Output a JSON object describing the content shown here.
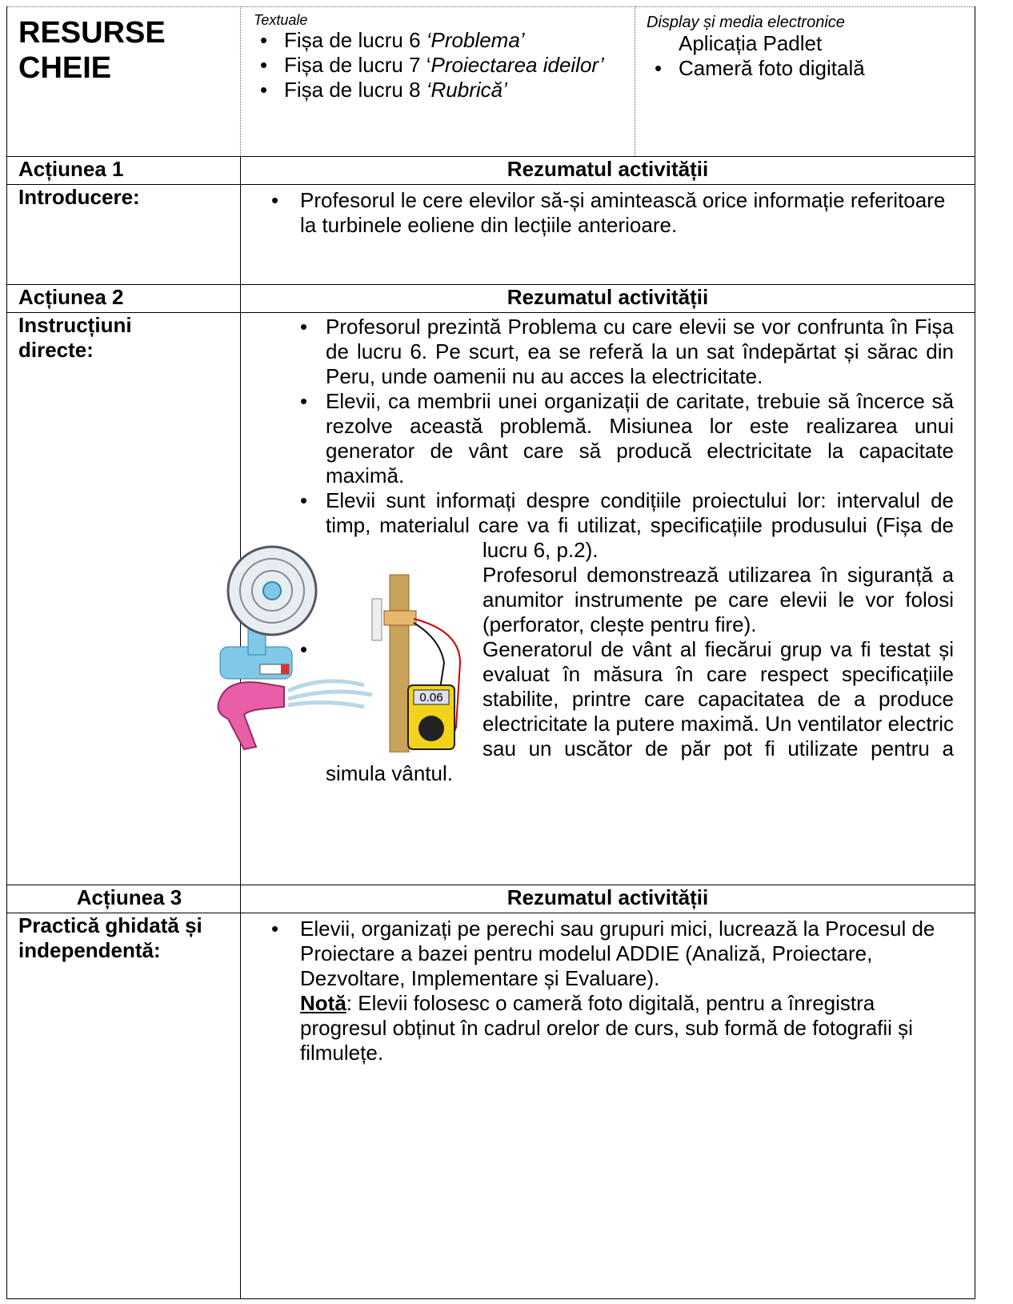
{
  "resources": {
    "title": "RESURSE CHEIE",
    "textual": {
      "heading": "Textuale",
      "items": [
        [
          {
            "plain": "Fișa de lucru  6 "
          },
          {
            "italic": "‘Problema’"
          }
        ],
        [
          {
            "plain": "Fișa de lucru 7 ‘"
          },
          {
            "italic": "Proiectarea ideilor’"
          }
        ],
        [
          {
            "plain": "Fișa de lucru 8 "
          },
          {
            "italic": "‘Rubrică’"
          }
        ]
      ]
    },
    "display": {
      "heading": "Display și media electronice",
      "lead": "Aplicația Padlet",
      "items": [
        "Cameră foto digitală"
      ]
    }
  },
  "sections": [
    {
      "action": "Acțiunea 1",
      "heading": "Rezumatul activității",
      "label": "Introducere:",
      "bullets": [
        "Profesorul le cere elevilor să-și amintească orice informație referitoare la turbinele eoliene din  lecțiile anterioare."
      ]
    },
    {
      "action": "Acțiunea 2",
      "heading": "Rezumatul activității",
      "label": "Instrucțiuni directe:",
      "bullets": [
        "Profesorul prezintă Problema cu care elevii se vor confrunta în Fișa de lucru 6.  Pe scurt, ea se referă la un sat îndepărtat și sărac din Peru, unde oamenii nu au acces la electricitate.",
        "Elevii, ca membrii unei organizații de caritate, trebuie să încerce să rezolve această problemă.  Misiunea lor este realizarea unui generator de vânt care să producă electricitate la capacitate maximă.",
        "Elevii sunt informați despre condițiile proiectului lor: intervalul de timp, materialul care va fi utilizat, specificațiile produsului (Fișa de lucru 6, p.2).",
        "Profesorul demonstrează utilizarea în siguranță a anumitor instrumente pe care elevii le vor folosi (perforator, clește pentru fire).",
        "Generatorul de vânt al fiecărui grup va fi testat și evaluat în măsura în care respect specificațiile stabilite, printre care capacitatea de a produce electricitate la putere maximă. Un ventilator electric sau un uscător de păr pot fi utilizate pentru a simula vântul."
      ],
      "illustration": {
        "meter_reading": "0.06"
      }
    },
    {
      "action": "Acțiunea 3",
      "heading": "Rezumatul activității",
      "label": "Practică ghidată și independentă:",
      "bullets": [
        "Elevii, organizați pe perechi sau grupuri mici, lucrează la Procesul de Proiectare a bazei pentru modelul ADDIE (Analiză, Proiectare, Dezvoltare, Implementare și Evaluare)."
      ],
      "note": {
        "label": "Notă",
        "text": ": Elevii folosesc o cameră foto digitală, pentru a înregistra progresul obținut în cadrul orelor de curs, sub formă de fotografii și filmulețe."
      }
    }
  ]
}
